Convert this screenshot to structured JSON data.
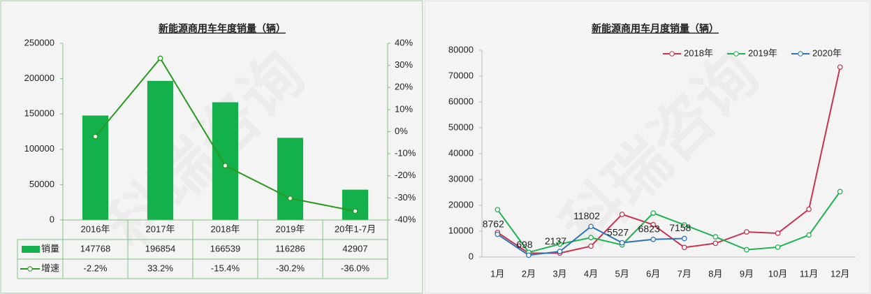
{
  "watermark": "科瑞咨询",
  "chart_data": [
    {
      "type": "bar",
      "title": "新能源商用车年度销量（辆）",
      "categories": [
        "2016年",
        "2017年",
        "2018年",
        "2019年",
        "20年1-7月"
      ],
      "series": [
        {
          "name": "销量",
          "type": "bar",
          "color": "#13b04b",
          "values": [
            147768,
            196854,
            166539,
            116286,
            42907
          ]
        },
        {
          "name": "增速",
          "type": "line",
          "axis": "y2",
          "color": "#2a9a1e",
          "values": [
            -2.2,
            33.2,
            -15.4,
            -30.2,
            -36.0
          ],
          "value_labels": [
            "-2.2%",
            "33.2%",
            "-15.4%",
            "-30.2%",
            "-36.0%"
          ]
        }
      ],
      "ylim": [
        0,
        250000
      ],
      "yticks": [
        0,
        50000,
        100000,
        150000,
        200000,
        250000
      ],
      "y2lim": [
        -40,
        40
      ],
      "y2ticks": [
        {
          "value": -40,
          "label": "-40%"
        },
        {
          "value": -30,
          "label": "-30%"
        },
        {
          "value": -20,
          "label": "-20%"
        },
        {
          "value": -10,
          "label": "-10%"
        },
        {
          "value": 0,
          "label": "0%"
        },
        {
          "value": 10,
          "label": "10%"
        },
        {
          "value": 20,
          "label": "20%"
        },
        {
          "value": 30,
          "label": "30%"
        },
        {
          "value": 40,
          "label": "40%"
        }
      ],
      "data_table": true
    },
    {
      "type": "line",
      "title": "新能源商用车月度销量（辆）",
      "categories": [
        "1月",
        "2月",
        "3月",
        "4月",
        "5月",
        "6月",
        "7月",
        "8月",
        "9月",
        "10月",
        "11月",
        "12月"
      ],
      "series": [
        {
          "name": "2018年",
          "color": "#c8334f",
          "values": [
            9500,
            1500,
            1500,
            4200,
            16500,
            12500,
            3700,
            5300,
            9700,
            9200,
            18500,
            73500
          ]
        },
        {
          "name": "2019年",
          "color": "#1db34f",
          "values": [
            18300,
            1800,
            5000,
            7500,
            4700,
            17000,
            12400,
            7800,
            2800,
            3800,
            8500,
            25300
          ]
        },
        {
          "name": "2020年",
          "color": "#2e75b6",
          "values": [
            8762,
            698,
            2137,
            11802,
            5527,
            6823,
            7158,
            null,
            null,
            null,
            null,
            null
          ],
          "data_labels": true
        }
      ],
      "ylim": [
        0,
        80000
      ],
      "yticks": [
        0,
        10000,
        20000,
        30000,
        40000,
        50000,
        60000,
        70000,
        80000
      ],
      "legend": "top-right"
    }
  ]
}
